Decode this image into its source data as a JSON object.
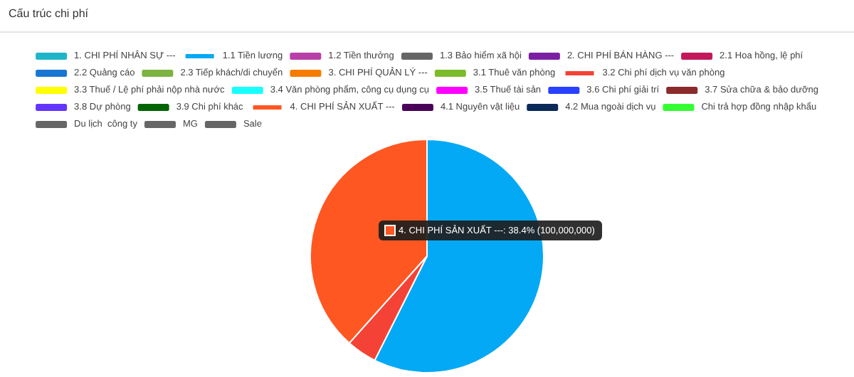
{
  "chart_data": {
    "type": "pie",
    "title": "Cấu trúc chi phí",
    "categories": [
      "1. CHI PHÍ NHÂN SỰ ---",
      "1.1 Tiền lương",
      "1.2 Tiền thưởng",
      "1.3 Bảo hiểm xã hội",
      "2. CHI PHÍ BÁN HÀNG ---",
      "2.1 Hoa hồng, lệ phí",
      "2.2 Quảng cáo",
      "2.3 Tiếp khách/di chuyển",
      "3. CHI PHÍ QUẢN LÝ ---",
      "3.1 Thuê văn phòng",
      "3.2 Chi phí dịch vụ văn phòng",
      "3.3 Thuế / Lệ phí phải nộp nhà nước",
      "3.4 Văn phòng phẩm, công cụ dụng cụ",
      "3.5 Thuế tài sản",
      "3.6 Chi phí giải trí",
      "3.7 Sửa chữa & bảo dưỡng",
      "3.8 Dự phòng",
      "3.9 Chi phí khác",
      "4. CHI PHÍ SẢN XUẤT ---",
      "4.1 Nguyên vật liệu",
      "4.2 Mua ngoài dịch vụ",
      "Chi trả hợp đồng nhập khẩu",
      "Du lịch  công ty",
      "MG",
      "Sale"
    ],
    "values": [
      0,
      57.4,
      0,
      0,
      0,
      0,
      0,
      0,
      0,
      0,
      4.2,
      0,
      0,
      0,
      0,
      0,
      0,
      0,
      38.4,
      0,
      0,
      0,
      0,
      0,
      0
    ],
    "colors": [
      "#1fb5c9",
      "#03a9f4",
      "#b93fa8",
      "#666666",
      "#7b1fa2",
      "#c2185b",
      "#1976d2",
      "#7cb342",
      "#f57c00",
      "#7cbb2a",
      "#f44336",
      "#ffff00",
      "#18ffff",
      "#ff00ff",
      "#2940ff",
      "#8b2a2a",
      "#6236ff",
      "#006400",
      "#ff5722",
      "#4a0058",
      "#0a2a5a",
      "#33ff33",
      "#666666",
      "#666666",
      "#666666"
    ],
    "legend": "top",
    "annotations": [
      "4. CHI PHÍ SẢN XUẤT ---: 38.4% (100,000,000)"
    ]
  }
}
